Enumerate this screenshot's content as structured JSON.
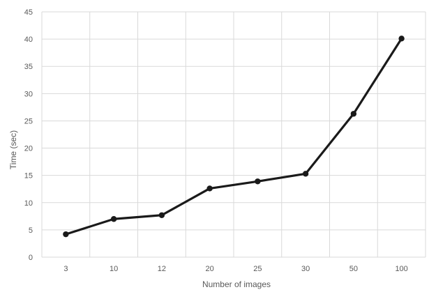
{
  "chart_data": {
    "type": "line",
    "title": "",
    "xlabel": "Number of images",
    "ylabel": "Time (sec)",
    "categories": [
      "3",
      "10",
      "12",
      "20",
      "25",
      "30",
      "50",
      "100"
    ],
    "series": [
      {
        "values": [
          4.2,
          7.0,
          7.7,
          12.6,
          13.9,
          15.3,
          26.3,
          40.1
        ],
        "color": "#1a1a1a"
      }
    ],
    "ylim": [
      0,
      45
    ],
    "yticks": [
      0,
      5,
      10,
      15,
      20,
      25,
      30,
      35,
      40,
      45
    ],
    "grid": true,
    "legend": "none"
  }
}
